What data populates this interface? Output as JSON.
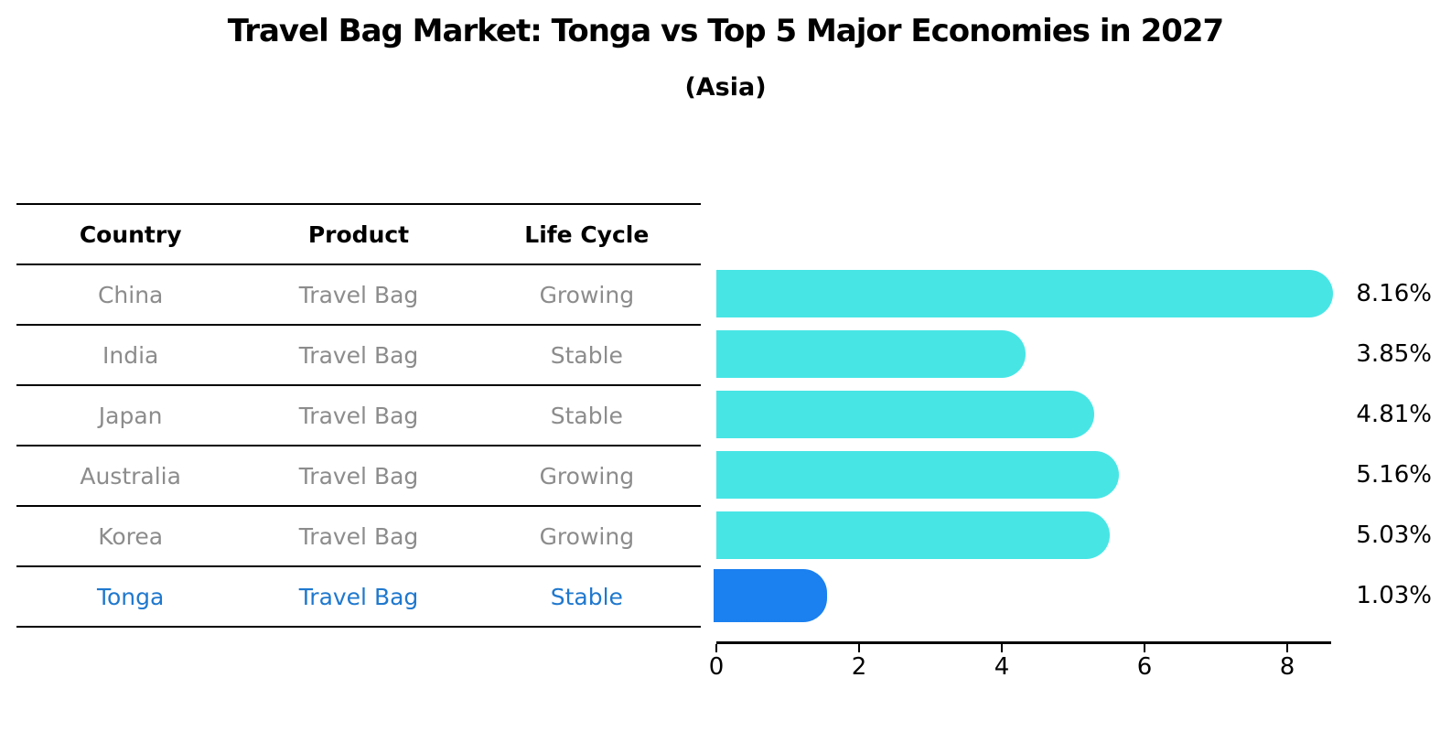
{
  "header": {
    "title": "Travel Bag Market: Tonga vs Top 5 Major Economies in 2027",
    "subtitle": "(Asia)"
  },
  "table": {
    "columns": [
      "Country",
      "Product",
      "Life Cycle"
    ],
    "rows": [
      {
        "country": "China",
        "product": "Travel Bag",
        "life_cycle": "Growing",
        "highlight": false
      },
      {
        "country": "India",
        "product": "Travel Bag",
        "life_cycle": "Stable",
        "highlight": false
      },
      {
        "country": "Japan",
        "product": "Travel Bag",
        "life_cycle": "Stable",
        "highlight": false
      },
      {
        "country": "Australia",
        "product": "Travel Bag",
        "life_cycle": "Growing",
        "highlight": false
      },
      {
        "country": "Korea",
        "product": "Travel Bag",
        "life_cycle": "Growing",
        "highlight": false
      },
      {
        "country": "Tonga",
        "product": "Travel Bag",
        "life_cycle": "Stable",
        "highlight": true
      }
    ]
  },
  "chart_data": {
    "type": "bar",
    "orientation": "horizontal",
    "title": "Travel Bag Market: Tonga vs Top 5 Major Economies in 2027",
    "subtitle": "(Asia)",
    "categories": [
      "China",
      "India",
      "Japan",
      "Australia",
      "Korea",
      "Tonga"
    ],
    "values": [
      8.16,
      3.85,
      4.81,
      5.16,
      5.03,
      1.03
    ],
    "value_labels": [
      "8.16%",
      "3.85%",
      "4.81%",
      "5.16%",
      "5.03%",
      "1.03%"
    ],
    "x_ticks": [
      0,
      2,
      4,
      6,
      8
    ],
    "xlim": [
      0,
      8.6
    ],
    "grid": false,
    "legend": false,
    "bar_color": "#48e5e5",
    "highlight_index": 5,
    "highlight_bar_color": "#1b80f0",
    "highlight_text_color": "#1f78ce"
  }
}
